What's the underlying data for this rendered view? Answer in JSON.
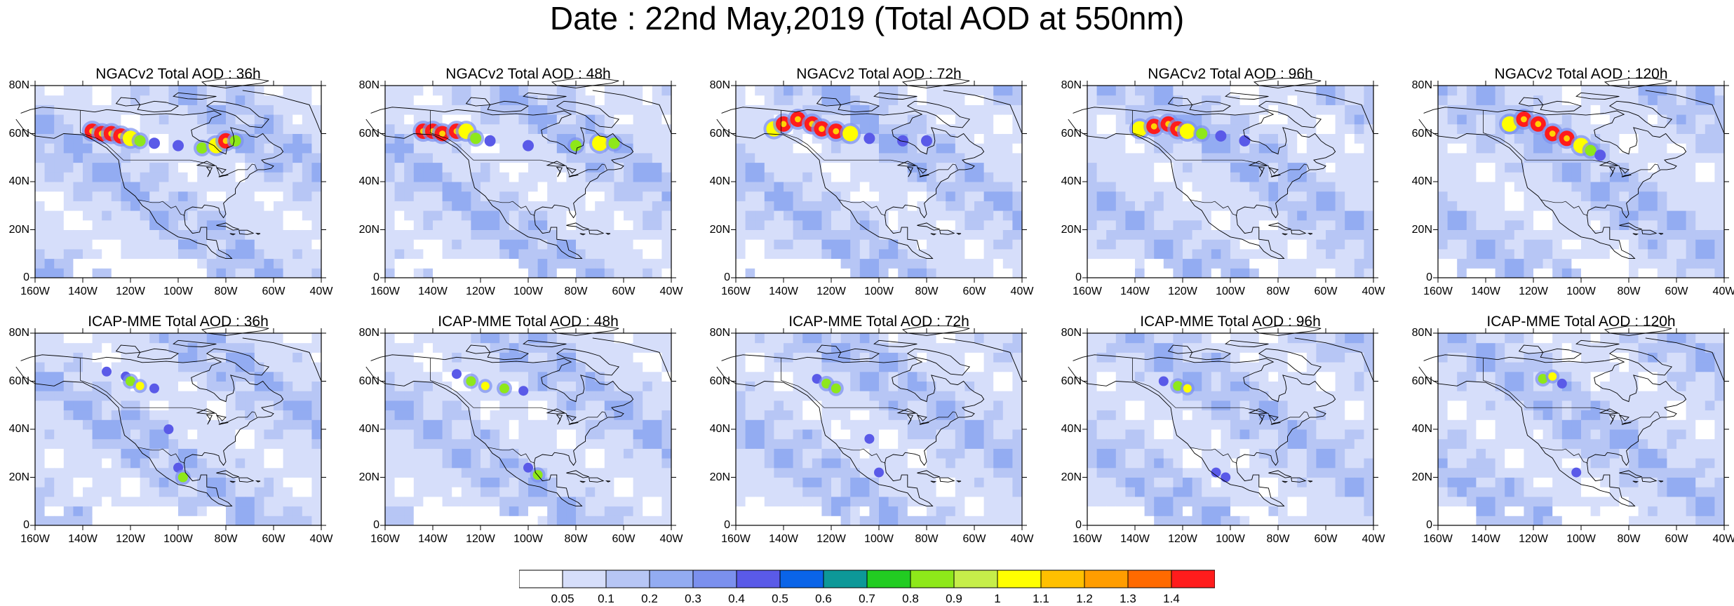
{
  "title": "Date : 22nd May,2019 (Total AOD at 550nm)",
  "axes": {
    "lat_labels": [
      "80N",
      "60N",
      "40N",
      "20N",
      "0"
    ],
    "lon_labels": [
      "160W",
      "140W",
      "120W",
      "100W",
      "80W",
      "60W",
      "40W"
    ]
  },
  "panels": [
    {
      "row": 0,
      "col": 0,
      "title": "NGACv2 Total AOD : 36h",
      "smoke_level": "high"
    },
    {
      "row": 0,
      "col": 1,
      "title": "NGACv2 Total AOD : 48h",
      "smoke_level": "high"
    },
    {
      "row": 0,
      "col": 2,
      "title": "NGACv2 Total AOD : 72h",
      "smoke_level": "high"
    },
    {
      "row": 0,
      "col": 3,
      "title": "NGACv2 Total AOD : 96h",
      "smoke_level": "high"
    },
    {
      "row": 0,
      "col": 4,
      "title": "NGACv2 Total AOD : 120h",
      "smoke_level": "high"
    },
    {
      "row": 1,
      "col": 0,
      "title": "ICAP-MME Total AOD : 36h",
      "smoke_level": "moderate"
    },
    {
      "row": 1,
      "col": 1,
      "title": "ICAP-MME Total AOD : 48h",
      "smoke_level": "moderate"
    },
    {
      "row": 1,
      "col": 2,
      "title": "ICAP-MME Total AOD : 72h",
      "smoke_level": "moderate"
    },
    {
      "row": 1,
      "col": 3,
      "title": "ICAP-MME Total AOD : 96h",
      "smoke_level": "moderate"
    },
    {
      "row": 1,
      "col": 4,
      "title": "ICAP-MME Total AOD : 120h",
      "smoke_level": "moderate"
    }
  ],
  "colorbar": {
    "labels": [
      "0.05",
      "0.1",
      "0.2",
      "0.3",
      "0.4",
      "0.5",
      "0.6",
      "0.7",
      "0.8",
      "0.9",
      "1",
      "1.1",
      "1.2",
      "1.3",
      "1.4"
    ],
    "colors": [
      "#ffffff",
      "#d6defa",
      "#b7c6f5",
      "#93acf2",
      "#7b90ee",
      "#5a5ae8",
      "#0a64e8",
      "#0d9898",
      "#22cc22",
      "#8ee81a",
      "#c6ee4a",
      "#ffff00",
      "#ffc000",
      "#ff9d00",
      "#ff6a00",
      "#ff1c1c"
    ]
  }
}
